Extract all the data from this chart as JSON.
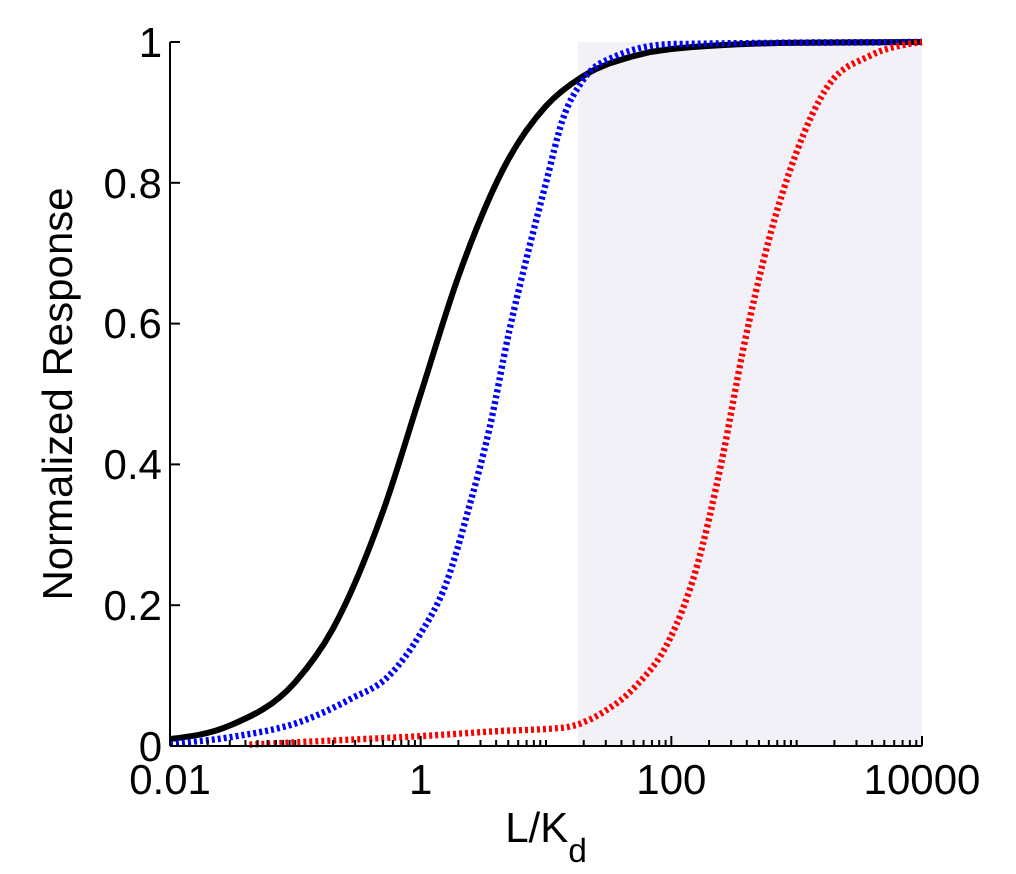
{
  "chart_data": {
    "type": "line",
    "xlabel": "L/K$_{d}$",
    "ylabel": "Normalized Response",
    "log": "x",
    "marker": "none",
    "xlim": [
      0.01,
      10000
    ],
    "ylim": [
      0,
      1
    ],
    "xticks": [
      0.01,
      {
        "value": 0.02,
        "label": null
      },
      {
        "value": 0.03,
        "label": null
      },
      {
        "value": 0.04,
        "label": null
      },
      {
        "value": 0.05,
        "label": null
      },
      {
        "value": 0.06,
        "label": null
      },
      {
        "value": 0.07,
        "label": null
      },
      {
        "value": 0.08,
        "label": null
      },
      {
        "value": 0.09,
        "label": null
      },
      {
        "value": 0.1,
        "label": null
      },
      {
        "value": 0.2,
        "label": null
      },
      {
        "value": 0.3,
        "label": null
      },
      {
        "value": 0.4,
        "label": null
      },
      {
        "value": 0.5,
        "label": null
      },
      {
        "value": 0.6,
        "label": null
      },
      {
        "value": 0.7,
        "label": null
      },
      {
        "value": 0.8,
        "label": null
      },
      {
        "value": 0.9,
        "label": null
      },
      1,
      {
        "value": 2,
        "label": null
      },
      {
        "value": 3,
        "label": null
      },
      {
        "value": 4,
        "label": null
      },
      {
        "value": 5,
        "label": null
      },
      {
        "value": 6,
        "label": null
      },
      {
        "value": 7,
        "label": null
      },
      {
        "value": 8,
        "label": null
      },
      {
        "value": 9,
        "label": null
      },
      {
        "value": 10,
        "label": null
      },
      {
        "value": 20,
        "label": null
      },
      {
        "value": 30,
        "label": null
      },
      {
        "value": 40,
        "label": null
      },
      {
        "value": 50,
        "label": null
      },
      {
        "value": 60,
        "label": null
      },
      {
        "value": 70,
        "label": null
      },
      {
        "value": 80,
        "label": null
      },
      {
        "value": 90,
        "label": null
      },
      100,
      {
        "value": 200,
        "label": null
      },
      {
        "value": 300,
        "label": null
      },
      {
        "value": 400,
        "label": null
      },
      {
        "value": 500,
        "label": null
      },
      {
        "value": 600,
        "label": null
      },
      {
        "value": 700,
        "label": null
      },
      {
        "value": 800,
        "label": null
      },
      {
        "value": 900,
        "label": null
      },
      {
        "value": 1000,
        "label": null
      },
      {
        "value": 2000,
        "label": null
      },
      {
        "value": 3000,
        "label": null
      },
      {
        "value": 4000,
        "label": null
      },
      {
        "value": 5000,
        "label": null
      },
      {
        "value": 6000,
        "label": null
      },
      {
        "value": 7000,
        "label": null
      },
      {
        "value": 8000,
        "label": null
      },
      {
        "value": 9000,
        "label": null
      },
      10000
    ],
    "yticks": [
      0,
      0.2,
      0.4,
      0.6,
      0.8,
      1
    ],
    "bands": [
      {
        "axis": "x",
        "from": 18,
        "to": 10000,
        "color": "#f2f1f8"
      }
    ],
    "series": [
      {
        "color": "#000000",
        "line_style": "solid",
        "x": [
          0.01,
          0.03,
          0.1,
          0.2,
          0.5,
          1,
          2,
          5,
          10,
          20,
          50,
          100,
          1000,
          10000
        ],
        "values": [
          0.01,
          0.029,
          0.091,
          0.167,
          0.333,
          0.5,
          0.667,
          0.833,
          0.909,
          0.952,
          0.98,
          0.99,
          0.999,
          1
        ]
      },
      {
        "color": "#0000ff",
        "line_style": "dotted",
        "x": [
          0.01,
          0.034,
          0.104,
          0.27,
          0.56,
          1,
          1.59,
          2.44,
          3.53,
          5.1,
          7.4,
          10,
          13.6,
          19.6,
          36,
          100,
          10000
        ],
        "values": [
          0.003,
          0.014,
          0.033,
          0.066,
          0.1,
          0.16,
          0.23,
          0.34,
          0.45,
          0.59,
          0.71,
          0.8,
          0.89,
          0.945,
          0.98,
          0.997,
          1
        ]
      },
      {
        "color": "#ff0000",
        "line_style": "dotted",
        "x": [
          0.043,
          0.21,
          1,
          4,
          13.6,
          28,
          52,
          96,
          157,
          256,
          371,
          602,
          981,
          1820,
          3800,
          10000
        ],
        "values": [
          0.002,
          0.008,
          0.014,
          0.021,
          0.026,
          0.047,
          0.085,
          0.15,
          0.25,
          0.41,
          0.56,
          0.72,
          0.84,
          0.94,
          0.98,
          1
        ]
      }
    ]
  }
}
